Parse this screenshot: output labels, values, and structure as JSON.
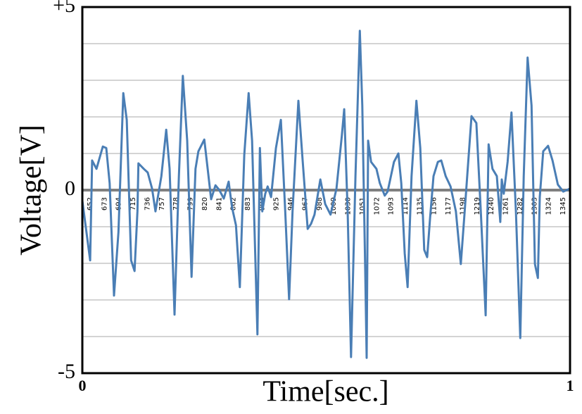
{
  "chart_data": {
    "type": "line",
    "x_label": "Time[sec.]",
    "y_label": "Voltage[V]",
    "xlim": [
      0,
      1
    ],
    "xticks": [
      0,
      1
    ],
    "ylim": [
      -5,
      5
    ],
    "yticks": [
      {
        "value": 5,
        "label": "+5"
      },
      0,
      -5
    ],
    "ygrid": [
      -4,
      -3,
      -2,
      -1,
      1,
      2,
      3,
      4
    ],
    "zero_line": true,
    "color": "#4a7eb5",
    "sample_labels": [
      652,
      673,
      694,
      715,
      736,
      757,
      778,
      799,
      820,
      841,
      862,
      883,
      904,
      925,
      946,
      967,
      988,
      1009,
      1030,
      1051,
      1072,
      1093,
      1114,
      1135,
      1156,
      1177,
      1198,
      1219,
      1240,
      1261,
      1282,
      1303,
      1324,
      1345
    ],
    "x": [
      0,
      0.016,
      0.02,
      0.029,
      0.042,
      0.049,
      0.056,
      0.065,
      0.074,
      0.084,
      0.091,
      0.1,
      0.107,
      0.113,
      0.115,
      0.126,
      0.134,
      0.143,
      0.15,
      0.162,
      0.172,
      0.179,
      0.189,
      0.198,
      0.206,
      0.215,
      0.224,
      0.232,
      0.238,
      0.25,
      0.257,
      0.264,
      0.273,
      0.281,
      0.29,
      0.3,
      0.307,
      0.315,
      0.323,
      0.332,
      0.341,
      0.348,
      0.359,
      0.364,
      0.369,
      0.375,
      0.38,
      0.387,
      0.397,
      0.407,
      0.416,
      0.424,
      0.431,
      0.443,
      0.452,
      0.462,
      0.469,
      0.476,
      0.488,
      0.498,
      0.509,
      0.521,
      0.532,
      0.537,
      0.544,
      0.551,
      0.56,
      0.569,
      0.574,
      0.58,
      0.583,
      0.586,
      0.592,
      0.603,
      0.61,
      0.62,
      0.626,
      0.639,
      0.648,
      0.654,
      0.661,
      0.667,
      0.675,
      0.685,
      0.693,
      0.701,
      0.707,
      0.713,
      0.72,
      0.729,
      0.736,
      0.745,
      0.755,
      0.766,
      0.776,
      0.784,
      0.798,
      0.808,
      0.817,
      0.827,
      0.833,
      0.841,
      0.85,
      0.857,
      0.86,
      0.864,
      0.872,
      0.88,
      0.889,
      0.898,
      0.905,
      0.913,
      0.921,
      0.928,
      0.934,
      0.938,
      0.945,
      0.955,
      0.964,
      0.975,
      0.986,
      1.0
    ],
    "values": [
      -0.29,
      -1.92,
      0.81,
      0.58,
      1.19,
      1.15,
      0.19,
      -2.88,
      -1.15,
      2.65,
      1.92,
      -1.92,
      -2.21,
      -0.58,
      0.73,
      0.58,
      0.48,
      0.04,
      -0.58,
      0.38,
      1.65,
      0.58,
      -3.4,
      0.38,
      3.12,
      1.35,
      -2.37,
      0.58,
      1.06,
      1.38,
      0.58,
      -0.25,
      0.13,
      0,
      -0.23,
      0.23,
      -0.48,
      -0.96,
      -2.65,
      0.96,
      2.65,
      1.35,
      -3.94,
      1.15,
      -0.58,
      -0.1,
      0.1,
      -0.19,
      1.15,
      1.92,
      -0.58,
      -2.98,
      -0.58,
      2.44,
      0.77,
      -1.06,
      -0.92,
      -0.67,
      0.29,
      -0.38,
      -0.67,
      0.04,
      1.48,
      2.21,
      -0.58,
      -4.56,
      0.38,
      4.35,
      2.31,
      -2.12,
      -4.58,
      1.35,
      0.77,
      0.58,
      0.19,
      -0.15,
      -0.04,
      0.77,
      1.0,
      0.19,
      -1.73,
      -2.65,
      0.38,
      2.44,
      1.15,
      -1.63,
      -1.83,
      -0.77,
      0.38,
      0.77,
      0.81,
      0.38,
      0.1,
      -0.58,
      -2.02,
      -0.58,
      2.02,
      1.83,
      -0.58,
      -3.42,
      1.25,
      0.58,
      0.38,
      -0.87,
      0.29,
      -0.1,
      0.77,
      2.12,
      -0.58,
      -4.04,
      0.38,
      3.62,
      2.31,
      -2.02,
      -2.4,
      -0.19,
      1.06,
      1.21,
      0.81,
      0.15,
      -0.04,
      0.04
    ]
  }
}
